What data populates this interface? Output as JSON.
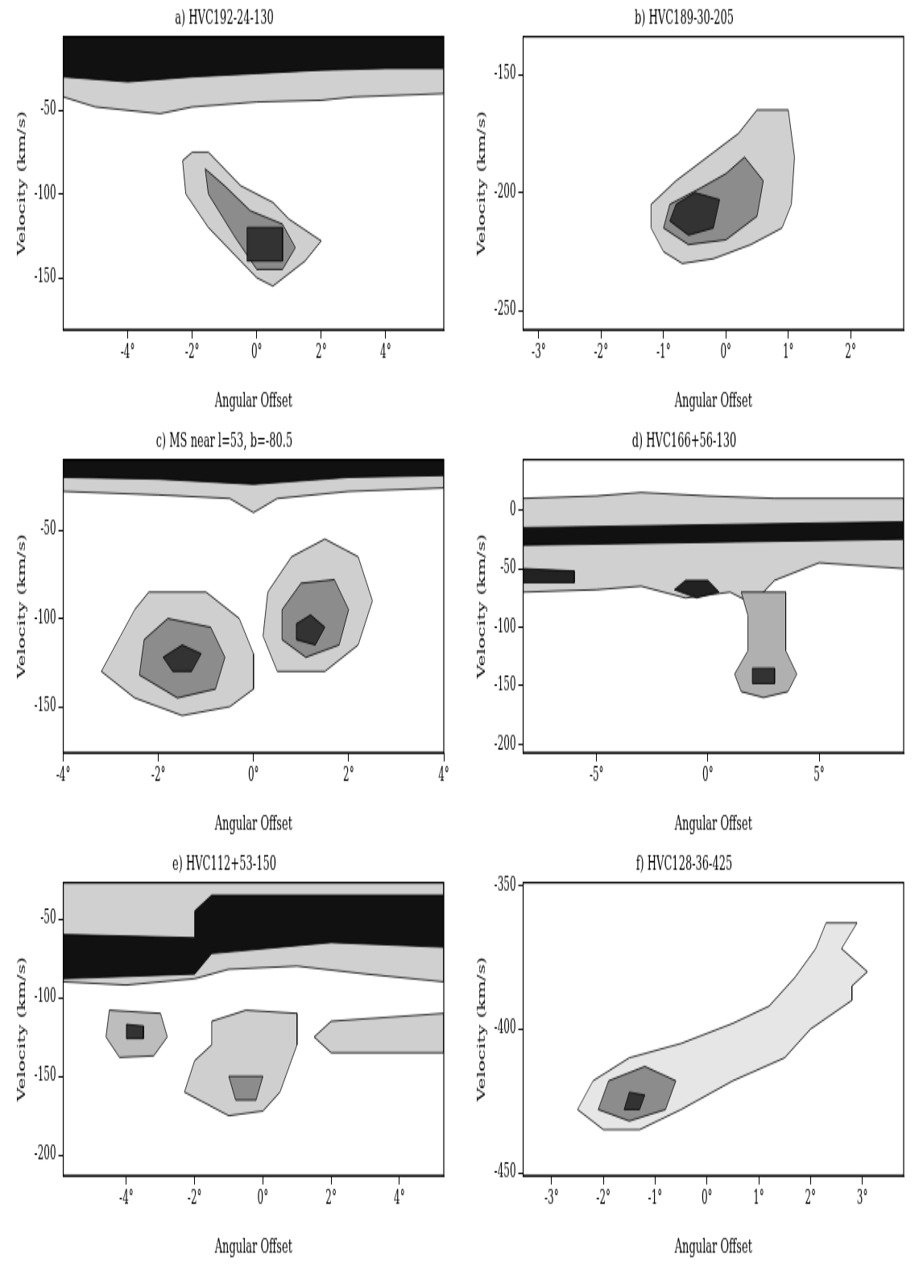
{
  "chart_data": [
    {
      "type": "area",
      "title": "a) HVC192-24-130",
      "x_label": "Angular Offset",
      "y_label": "Velocity (km/s)",
      "grid": false,
      "xlim": [
        -6,
        5.8
      ],
      "ylim": [
        -181,
        -6
      ],
      "xticks": [
        {
          "value": -4,
          "label": "-4°"
        },
        {
          "value": -2,
          "label": "-2°"
        },
        {
          "value": 0,
          "label": "0°"
        },
        {
          "value": 2,
          "label": "2°"
        },
        {
          "value": 4,
          "label": "4°"
        }
      ],
      "yticks": [
        -150,
        -100,
        -50
      ],
      "series": [
        {
          "color": "#d0d0d0",
          "x": [
            -6,
            -6,
            -5,
            -3,
            -2,
            0,
            2,
            3,
            5.8,
            5.8
          ],
          "values": [
            -6,
            -42,
            -48,
            -52,
            -48,
            -45,
            -44,
            -42,
            -40,
            -6
          ]
        },
        {
          "color": "#111111",
          "x": [
            -6,
            -6,
            -4,
            -2,
            0,
            2,
            4,
            5.8,
            5.8
          ],
          "values": [
            -6,
            -30,
            -33,
            -30,
            -28,
            -26,
            -25,
            -25,
            -6
          ]
        },
        {
          "color": "#cfcfcf",
          "x": [
            -2,
            -1.5,
            -0.5,
            0.5,
            1,
            2,
            1.5,
            0.5,
            0,
            -0.5,
            -1.5,
            -2.2,
            -2.3
          ],
          "values": [
            -75,
            -75,
            -95,
            -105,
            -115,
            -128,
            -140,
            -155,
            -150,
            -140,
            -120,
            -100,
            -80
          ]
        },
        {
          "color": "#8c8c8c",
          "x": [
            -1.6,
            -1,
            -0.2,
            0.8,
            1.2,
            0.8,
            0,
            -0.7,
            -1.5
          ],
          "values": [
            -85,
            -95,
            -110,
            -118,
            -132,
            -145,
            -145,
            -125,
            -100
          ]
        },
        {
          "color": "#333333",
          "x": [
            -0.3,
            0.8,
            0.8,
            -0.3
          ],
          "values": [
            -120,
            -120,
            -140,
            -140
          ]
        }
      ]
    },
    {
      "type": "area",
      "title": "b) HVC189-30-205",
      "x_label": "Angular Offset",
      "y_label": "Velocity (km/s)",
      "grid": false,
      "xlim": [
        -3.25,
        2.85
      ],
      "ylim": [
        -258,
        -134
      ],
      "xticks": [
        {
          "value": -3,
          "label": "-3°"
        },
        {
          "value": -2,
          "label": "-2°"
        },
        {
          "value": -1,
          "label": "-1°"
        },
        {
          "value": 0,
          "label": "0°"
        },
        {
          "value": 1,
          "label": "1°"
        },
        {
          "value": 2,
          "label": "2°"
        }
      ],
      "yticks": [
        -250,
        -200,
        -150
      ],
      "series": [
        {
          "color": "#d0d0d0",
          "x": [
            0.5,
            1,
            1.1,
            1.05,
            0.9,
            0.4,
            -0.2,
            -0.7,
            -1,
            -1.2,
            -1.2,
            -0.8,
            -0.3,
            0.2
          ],
          "values": [
            -165,
            -165,
            -185,
            -205,
            -215,
            -222,
            -228,
            -230,
            -225,
            -215,
            -205,
            -195,
            -185,
            -175
          ]
        },
        {
          "color": "#8c8c8c",
          "x": [
            0.3,
            0.6,
            0.5,
            0,
            -0.6,
            -1,
            -0.9,
            -0.4,
            0
          ],
          "values": [
            -185,
            -195,
            -210,
            -220,
            -222,
            -215,
            -205,
            -198,
            -192
          ]
        },
        {
          "color": "#333333",
          "x": [
            -0.5,
            -0.1,
            -0.2,
            -0.6,
            -0.9,
            -0.8
          ],
          "values": [
            -200,
            -203,
            -215,
            -218,
            -212,
            -205
          ]
        }
      ]
    },
    {
      "type": "area",
      "title": "c) MS near l=53, b=-80.5",
      "x_label": "Angular Offset",
      "y_label": "Velocity (km/s)",
      "grid": false,
      "xlim": [
        -4,
        4
      ],
      "ylim": [
        -176,
        -10
      ],
      "xticks": [
        {
          "value": -4,
          "label": "-4°"
        },
        {
          "value": -2,
          "label": "-2°"
        },
        {
          "value": 0,
          "label": "0°"
        },
        {
          "value": 2,
          "label": "2°"
        },
        {
          "value": 4,
          "label": "4°"
        }
      ],
      "yticks": [
        -150,
        -100,
        -50
      ],
      "series": [
        {
          "color": "#d0d0d0",
          "x": [
            -4,
            -4,
            -2,
            -0.5,
            0,
            0.5,
            2,
            4,
            4
          ],
          "values": [
            -10,
            -28,
            -30,
            -32,
            -40,
            -32,
            -28,
            -26,
            -10
          ]
        },
        {
          "color": "#111111",
          "x": [
            -4,
            -4,
            -2,
            0,
            2,
            4,
            4
          ],
          "values": [
            -10,
            -20,
            -21,
            -24,
            -20,
            -19,
            -10
          ]
        },
        {
          "color": "#cfcfcf",
          "x": [
            -2.2,
            -1,
            -0.3,
            0,
            0,
            -0.5,
            -1.5,
            -2.5,
            -3.2,
            -2.8,
            -2.5
          ],
          "values": [
            -85,
            -85,
            -100,
            -120,
            -140,
            -150,
            -155,
            -145,
            -130,
            -110,
            -95
          ]
        },
        {
          "color": "#8c8c8c",
          "x": [
            -1.8,
            -0.9,
            -0.6,
            -0.8,
            -1.6,
            -2.4,
            -2.3
          ],
          "values": [
            -100,
            -105,
            -122,
            -140,
            -145,
            -132,
            -112
          ]
        },
        {
          "color": "#333333",
          "x": [
            -1.5,
            -1.1,
            -1.3,
            -1.7,
            -1.9
          ],
          "values": [
            -115,
            -120,
            -130,
            -130,
            -122
          ]
        },
        {
          "color": "#cfcfcf",
          "x": [
            0.8,
            1.5,
            2.2,
            2.5,
            2.2,
            1.5,
            0.5,
            0.2,
            0.3
          ],
          "values": [
            -65,
            -55,
            -65,
            -90,
            -115,
            -130,
            -130,
            -110,
            -85
          ]
        },
        {
          "color": "#8c8c8c",
          "x": [
            1,
            1.7,
            2,
            1.8,
            1.1,
            0.6,
            0.6
          ],
          "values": [
            -80,
            -78,
            -95,
            -115,
            -122,
            -112,
            -95
          ]
        },
        {
          "color": "#333333",
          "x": [
            1.2,
            1.5,
            1.3,
            0.9,
            0.9
          ],
          "values": [
            -98,
            -105,
            -115,
            -112,
            -103
          ]
        }
      ]
    },
    {
      "type": "area",
      "title": "d) HVC166+56-130",
      "x_label": "Angular Offset",
      "y_label": "Velocity (km/s)",
      "grid": false,
      "xlim": [
        -8.3,
        8.8
      ],
      "ylim": [
        -207,
        43
      ],
      "xticks": [
        {
          "value": -5,
          "label": "-5°"
        },
        {
          "value": 0,
          "label": "0°"
        },
        {
          "value": 5,
          "label": "5°"
        }
      ],
      "yticks": [
        -200,
        -150,
        -100,
        -50,
        0
      ],
      "series": [
        {
          "color": "#d0d0d0",
          "x": [
            -8.3,
            -5,
            -3,
            0,
            3,
            8.8,
            8.8,
            5,
            3,
            2,
            1,
            -1,
            -3,
            -5,
            -8.3
          ],
          "values": [
            10,
            12,
            15,
            12,
            10,
            10,
            -50,
            -45,
            -60,
            -80,
            -70,
            -75,
            -65,
            -68,
            -70
          ]
        },
        {
          "color": "#111111",
          "x": [
            -8.3,
            8.8,
            8.8,
            -8.3
          ],
          "values": [
            -15,
            -10,
            -25,
            -30
          ]
        },
        {
          "color": "#222222",
          "x": [
            -1,
            0,
            0.5,
            -0.5,
            -1.5
          ],
          "values": [
            -60,
            -60,
            -70,
            -75,
            -68
          ]
        },
        {
          "color": "#222222",
          "x": [
            -8.3,
            -6,
            -6,
            -8.3
          ],
          "values": [
            -50,
            -52,
            -62,
            -62
          ]
        },
        {
          "color": "#b0b0b0",
          "x": [
            1.5,
            3.5,
            3.5,
            4,
            3.6,
            2.5,
            1.5,
            1.2,
            1.8,
            1.8
          ],
          "values": [
            -70,
            -70,
            -120,
            -140,
            -155,
            -160,
            -155,
            -140,
            -120,
            -90
          ]
        },
        {
          "color": "#333333",
          "x": [
            2,
            3,
            3,
            2
          ],
          "values": [
            -135,
            -135,
            -148,
            -148
          ]
        }
      ]
    },
    {
      "type": "area",
      "title": "e) HVC112+53-150",
      "x_label": "Angular Offset",
      "y_label": "Velocity (km/s)",
      "grid": false,
      "xlim": [
        -5.85,
        5.3
      ],
      "ylim": [
        -213,
        -27
      ],
      "xticks": [
        {
          "value": -4,
          "label": "-4°"
        },
        {
          "value": -2,
          "label": "-2°"
        },
        {
          "value": 0,
          "label": "0°"
        },
        {
          "value": 2,
          "label": "2°"
        },
        {
          "value": 4,
          "label": "4°"
        }
      ],
      "yticks": [
        -200,
        -150,
        -100,
        -50
      ],
      "series": [
        {
          "color": "#d0d0d0",
          "x": [
            -5.85,
            5.3,
            5.3,
            3,
            1,
            -1,
            -2,
            -4,
            -5.85
          ],
          "values": [
            -27,
            -27,
            -90,
            -85,
            -80,
            -82,
            -88,
            -92,
            -90
          ]
        },
        {
          "color": "#111111",
          "x": [
            -5.85,
            -2,
            -2,
            -1.5,
            5.3,
            5.3,
            2,
            -1.5,
            -2,
            -5.85
          ],
          "values": [
            -60,
            -62,
            -45,
            -35,
            -35,
            -68,
            -65,
            -72,
            -85,
            -88
          ]
        },
        {
          "color": "#bdbdbd",
          "x": [
            -4.5,
            -3,
            -2.8,
            -3.2,
            -4.2,
            -4.6
          ],
          "values": [
            -108,
            -110,
            -125,
            -137,
            -138,
            -125
          ]
        },
        {
          "color": "#333333",
          "x": [
            -4,
            -3.5,
            -3.5,
            -4
          ],
          "values": [
            -117,
            -118,
            -126,
            -126
          ]
        },
        {
          "color": "#cfcfcf",
          "x": [
            -1.5,
            -0.5,
            1,
            1,
            0.5,
            0,
            -1,
            -2.3,
            -2,
            -1.5
          ],
          "values": [
            -115,
            -108,
            -110,
            -130,
            -160,
            -172,
            -175,
            -160,
            -140,
            -130
          ]
        },
        {
          "color": "#8c8c8c",
          "x": [
            -1,
            0,
            -0.2,
            -0.8
          ],
          "values": [
            -150,
            -150,
            -165,
            -165
          ]
        },
        {
          "color": "#cfcfcf",
          "x": [
            2,
            5.3,
            5.3,
            2,
            1.5
          ],
          "values": [
            -115,
            -110,
            -135,
            -135,
            -125
          ]
        }
      ]
    },
    {
      "type": "area",
      "title": "f) HVC128-36-425",
      "x_label": "Angular Offset",
      "y_label": "Velocity (km/s)",
      "grid": false,
      "xlim": [
        -3.55,
        3.8
      ],
      "ylim": [
        -451,
        -349
      ],
      "xticks": [
        {
          "value": -3,
          "label": "-3°"
        },
        {
          "value": -2,
          "label": "-2°"
        },
        {
          "value": -1,
          "label": "-1°"
        },
        {
          "value": 0,
          "label": "0°"
        },
        {
          "value": 1,
          "label": "1°"
        },
        {
          "value": 2,
          "label": "2°"
        },
        {
          "value": 3,
          "label": "3°"
        }
      ],
      "yticks": [
        -450,
        -400,
        -350
      ],
      "series": [
        {
          "color": "#e6e6e6",
          "x": [
            2.3,
            2.9,
            2.6,
            3.1,
            2.8,
            2.8,
            2,
            1.5,
            0.5,
            -0.5,
            -1.3,
            -2,
            -2.5,
            -2.2,
            -1.5,
            -0.5,
            0.5,
            1.2,
            1.7,
            2.1
          ],
          "values": [
            -363,
            -363,
            -372,
            -380,
            -385,
            -390,
            -400,
            -410,
            -418,
            -428,
            -435,
            -435,
            -428,
            -418,
            -410,
            -405,
            -398,
            -392,
            -382,
            -372
          ]
        },
        {
          "color": "#8c8c8c",
          "x": [
            -1.2,
            -0.6,
            -0.8,
            -1.5,
            -2.1,
            -1.9
          ],
          "values": [
            -413,
            -418,
            -428,
            -432,
            -428,
            -418
          ]
        },
        {
          "color": "#333333",
          "x": [
            -1.5,
            -1.2,
            -1.3,
            -1.6
          ],
          "values": [
            -422,
            -423,
            -428,
            -428
          ]
        }
      ]
    }
  ]
}
